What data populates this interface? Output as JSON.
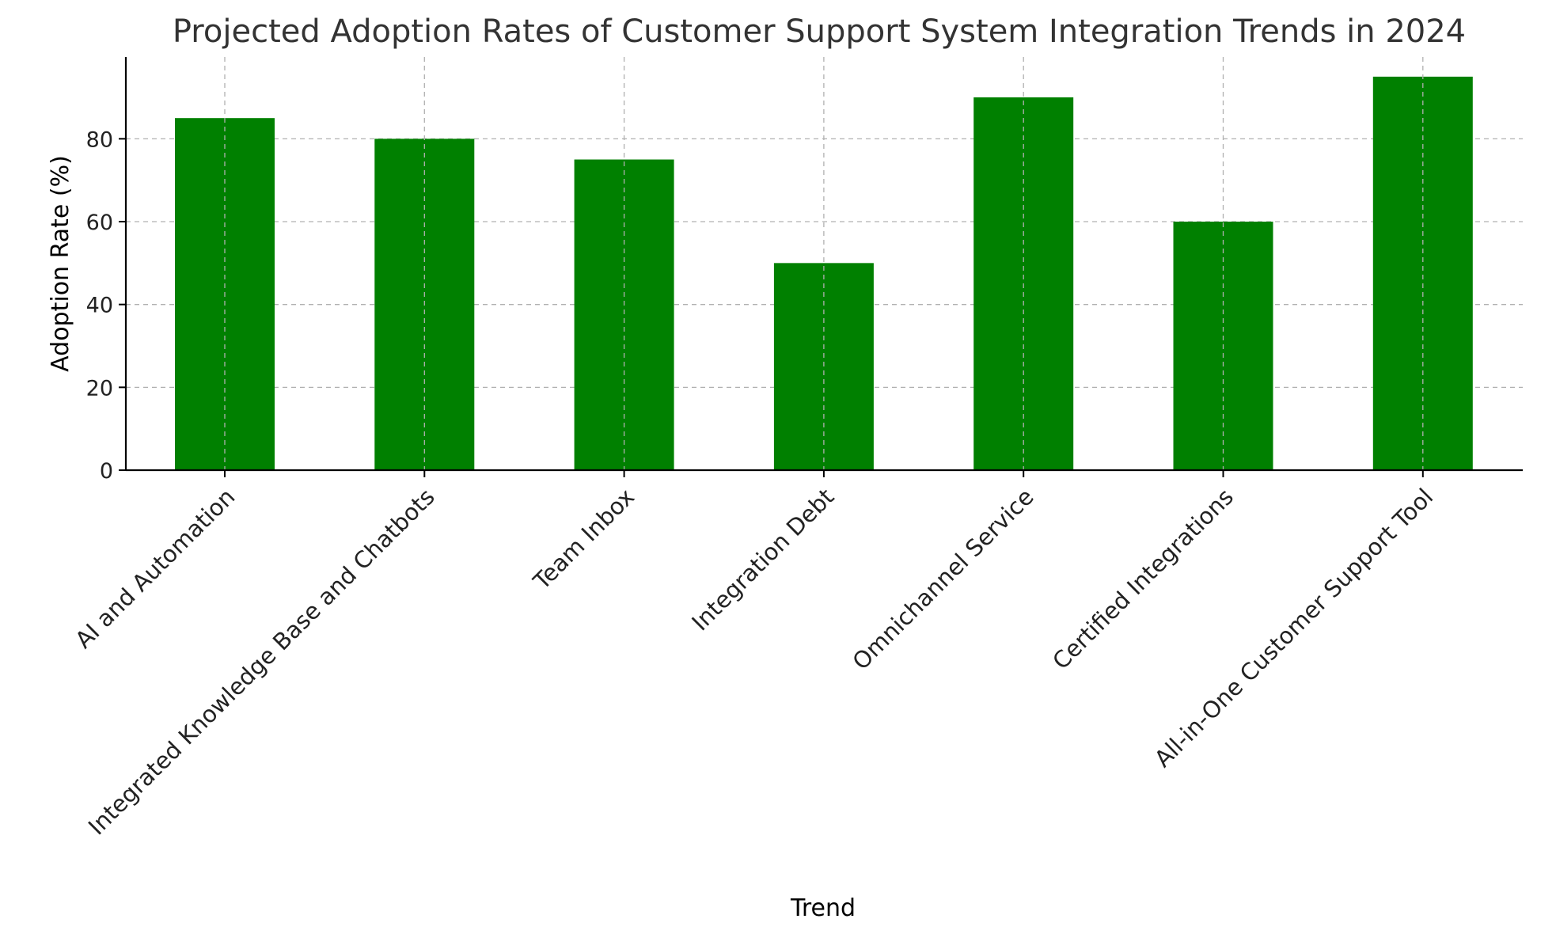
{
  "chart_data": {
    "type": "bar",
    "title": "Projected Adoption Rates of Customer Support System Integration Trends in 2024",
    "xlabel": "Trend",
    "ylabel": "Adoption Rate (%)",
    "categories": [
      "AI and Automation",
      "Integrated Knowledge Base and Chatbots",
      "Team Inbox",
      "Integration Debt",
      "Omnichannel Service",
      "Certified Integrations",
      "All-in-One Customer Support Tool"
    ],
    "values": [
      85,
      80,
      75,
      50,
      90,
      60,
      95
    ],
    "ylim": [
      0,
      99.75
    ],
    "yticks": [
      0,
      20,
      40,
      60,
      80
    ],
    "bar_color": "#008000",
    "grid": true,
    "legend": "none"
  }
}
